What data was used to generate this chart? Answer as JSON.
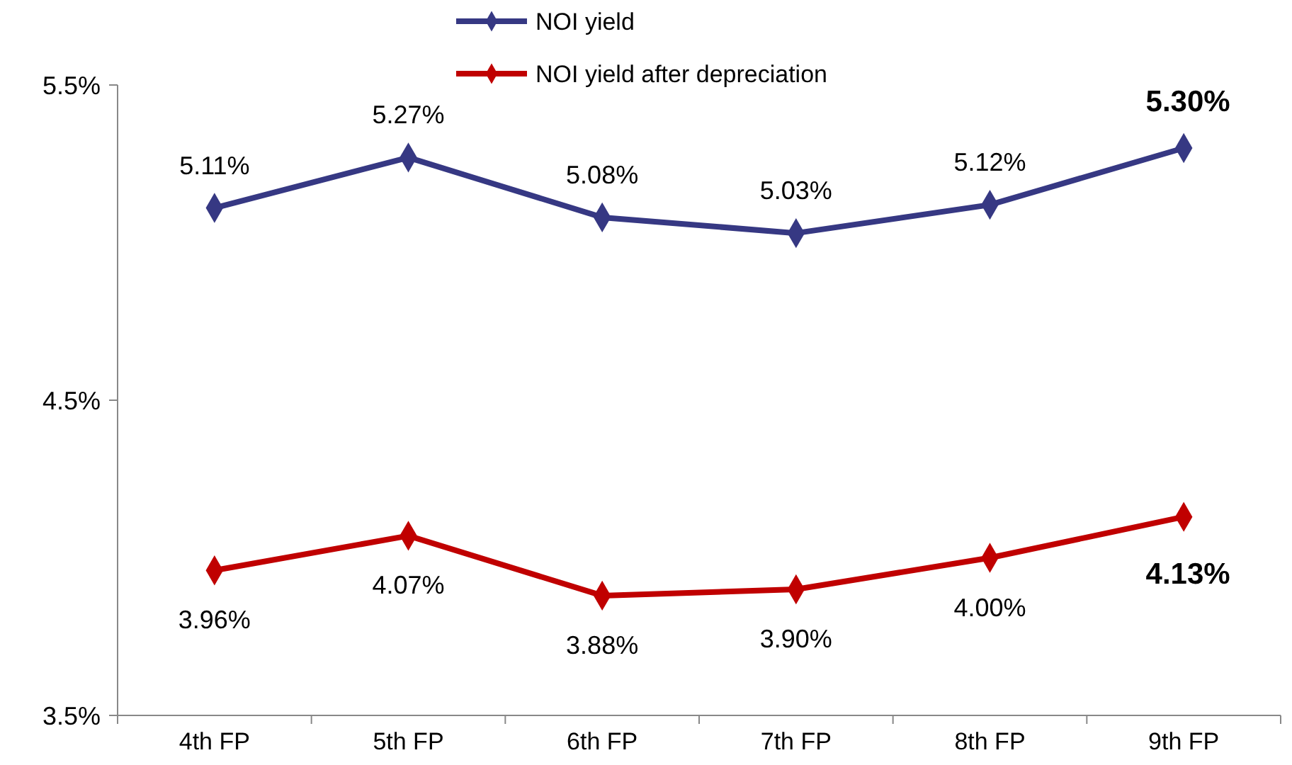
{
  "chart_data": {
    "type": "line",
    "categories": [
      "4th FP",
      "5th FP",
      "6th FP",
      "7th FP",
      "8th FP",
      "9th FP"
    ],
    "series": [
      {
        "name": "NOI yield",
        "color": "#363883",
        "values": [
          5.11,
          5.27,
          5.08,
          5.03,
          5.12,
          5.3
        ],
        "value_labels": [
          "5.11%",
          "5.27%",
          "5.08%",
          "5.03%",
          "5.12%",
          "5.30%"
        ]
      },
      {
        "name": "NOI yield after depreciation",
        "color": "#c00000",
        "values": [
          3.96,
          4.07,
          3.88,
          3.9,
          4.0,
          4.13
        ],
        "value_labels": [
          "3.96%",
          "4.07%",
          "3.88%",
          "3.90%",
          "4.00%",
          "4.13%"
        ]
      }
    ],
    "ylim": [
      3.5,
      5.5
    ],
    "yticks": [
      {
        "value": 3.5,
        "label": "3.5%"
      },
      {
        "value": 4.5,
        "label": "4.5%"
      },
      {
        "value": 5.5,
        "label": "5.5%"
      }
    ],
    "grid": false,
    "legend": "top",
    "marker": "diamond",
    "line_style": "solid"
  }
}
